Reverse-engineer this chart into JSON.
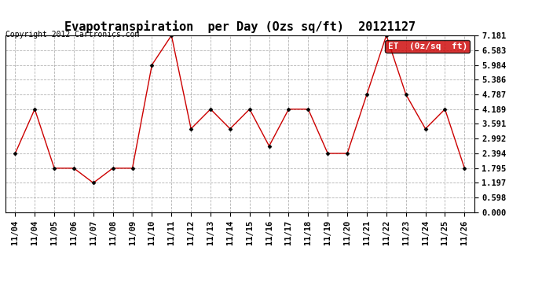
{
  "title": "Evapotranspiration  per Day (Ozs sq/ft)  20121127",
  "copyright": "Copyright 2012 Cartronics.com",
  "legend_label": "ET  (0z/sq  ft)",
  "legend_bg": "#cc0000",
  "legend_text_color": "#ffffff",
  "x_labels": [
    "11/04",
    "11/04",
    "11/05",
    "11/06",
    "11/07",
    "11/08",
    "11/09",
    "11/10",
    "11/11",
    "11/12",
    "11/13",
    "11/14",
    "11/15",
    "11/16",
    "11/17",
    "11/18",
    "11/19",
    "11/20",
    "11/21",
    "11/22",
    "11/23",
    "11/24",
    "11/25",
    "11/26"
  ],
  "y_values": [
    2.394,
    4.189,
    1.795,
    1.795,
    1.197,
    1.795,
    1.795,
    5.984,
    7.181,
    3.392,
    4.189,
    3.392,
    4.189,
    2.693,
    4.189,
    4.189,
    2.394,
    2.394,
    4.787,
    7.181,
    4.787,
    3.392,
    4.189,
    1.795
  ],
  "y_ticks": [
    0.0,
    0.598,
    1.197,
    1.795,
    2.394,
    2.992,
    3.591,
    4.189,
    4.787,
    5.386,
    5.984,
    6.583,
    7.181
  ],
  "ylim": [
    0.0,
    7.181
  ],
  "line_color": "#cc0000",
  "marker_color": "#000000",
  "bg_color": "#ffffff",
  "grid_color": "#aaaaaa",
  "title_fontsize": 11,
  "copyright_fontsize": 7,
  "tick_fontsize": 7.5,
  "legend_fontsize": 8
}
